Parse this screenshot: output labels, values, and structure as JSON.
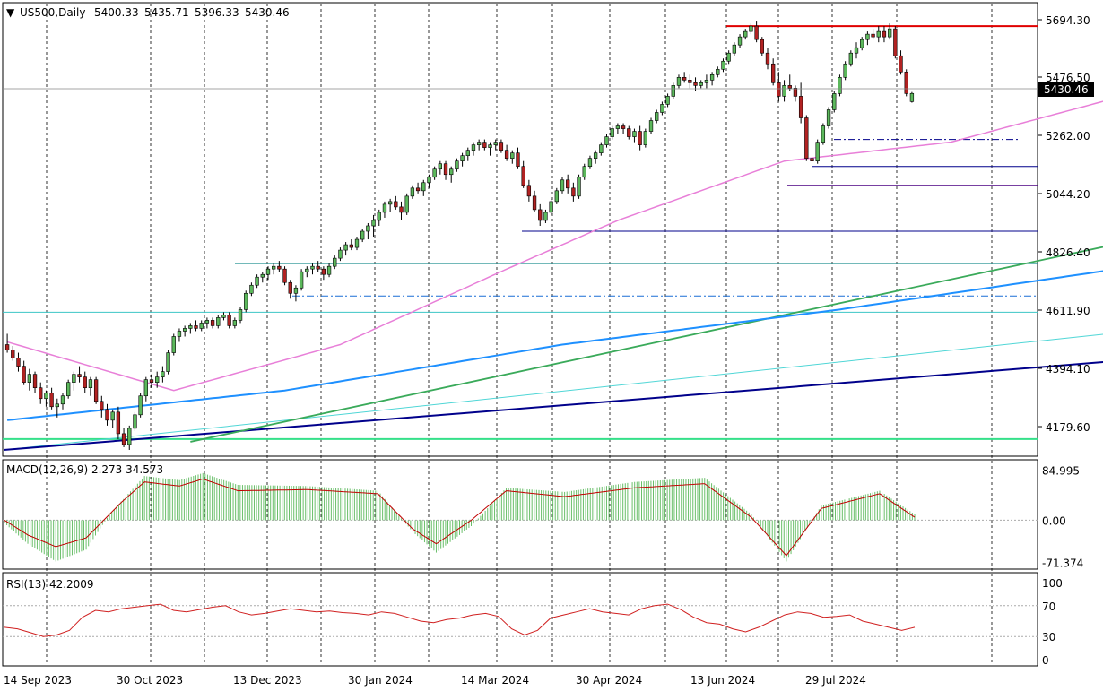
{
  "chart_data": [
    {
      "type": "candlestick",
      "title": "US500,Daily",
      "ohlc_header": {
        "open": "5400.33",
        "high": "5435.71",
        "low": "5396.33",
        "close": "5430.46"
      },
      "last_price_label": "5430.46",
      "ylim": [
        4090,
        5760
      ],
      "y_ticks": [
        "5694.30",
        "5476.50",
        "5262.00",
        "5044.20",
        "4826.40",
        "4611.90",
        "4394.10",
        "4179.60"
      ],
      "x_tick_labels": [
        "14 Sep 2023",
        "30 Oct 2023",
        "13 Dec 2023",
        "30 Jan 2024",
        "14 Mar 2024",
        "30 Apr 2024",
        "13 Jun 2024",
        "29 Jul 2024"
      ],
      "ohlc": [
        [
          4500,
          4540,
          4470,
          4480
        ],
        [
          4480,
          4495,
          4440,
          4450
        ],
        [
          4450,
          4470,
          4400,
          4420
        ],
        [
          4420,
          4440,
          4350,
          4360
        ],
        [
          4360,
          4410,
          4330,
          4390
        ],
        [
          4390,
          4400,
          4320,
          4340
        ],
        [
          4340,
          4360,
          4280,
          4300
        ],
        [
          4300,
          4330,
          4270,
          4320
        ],
        [
          4320,
          4340,
          4260,
          4270
        ],
        [
          4270,
          4300,
          4230,
          4280
        ],
        [
          4280,
          4320,
          4260,
          4310
        ],
        [
          4310,
          4370,
          4300,
          4360
        ],
        [
          4360,
          4400,
          4330,
          4390
        ],
        [
          4390,
          4420,
          4360,
          4380
        ],
        [
          4380,
          4400,
          4320,
          4340
        ],
        [
          4340,
          4380,
          4310,
          4370
        ],
        [
          4370,
          4380,
          4280,
          4290
        ],
        [
          4290,
          4310,
          4230,
          4260
        ],
        [
          4260,
          4280,
          4200,
          4220
        ],
        [
          4220,
          4260,
          4190,
          4250
        ],
        [
          4250,
          4270,
          4150,
          4170
        ],
        [
          4170,
          4190,
          4120,
          4130
        ],
        [
          4130,
          4200,
          4110,
          4190
        ],
        [
          4190,
          4250,
          4180,
          4240
        ],
        [
          4240,
          4320,
          4230,
          4310
        ],
        [
          4310,
          4380,
          4290,
          4370
        ],
        [
          4370,
          4390,
          4340,
          4360
        ],
        [
          4360,
          4400,
          4340,
          4380
        ],
        [
          4380,
          4420,
          4360,
          4400
        ],
        [
          4400,
          4480,
          4390,
          4470
        ],
        [
          4470,
          4540,
          4460,
          4530
        ],
        [
          4530,
          4560,
          4510,
          4550
        ],
        [
          4550,
          4570,
          4530,
          4560
        ],
        [
          4560,
          4580,
          4540,
          4570
        ],
        [
          4570,
          4590,
          4550,
          4560
        ],
        [
          4560,
          4590,
          4550,
          4580
        ],
        [
          4580,
          4600,
          4560,
          4590
        ],
        [
          4590,
          4600,
          4560,
          4570
        ],
        [
          4570,
          4610,
          4560,
          4600
        ],
        [
          4600,
          4620,
          4590,
          4610
        ],
        [
          4610,
          4620,
          4560,
          4570
        ],
        [
          4570,
          4600,
          4560,
          4590
        ],
        [
          4590,
          4640,
          4580,
          4630
        ],
        [
          4630,
          4700,
          4620,
          4690
        ],
        [
          4690,
          4730,
          4680,
          4720
        ],
        [
          4720,
          4760,
          4710,
          4750
        ],
        [
          4750,
          4770,
          4730,
          4760
        ],
        [
          4760,
          4790,
          4740,
          4780
        ],
        [
          4780,
          4800,
          4760,
          4790
        ],
        [
          4790,
          4810,
          4770,
          4780
        ],
        [
          4780,
          4790,
          4720,
          4730
        ],
        [
          4730,
          4740,
          4670,
          4690
        ],
        [
          4690,
          4720,
          4660,
          4710
        ],
        [
          4710,
          4780,
          4700,
          4770
        ],
        [
          4770,
          4790,
          4750,
          4780
        ],
        [
          4780,
          4800,
          4760,
          4790
        ],
        [
          4790,
          4810,
          4770,
          4780
        ],
        [
          4780,
          4790,
          4740,
          4760
        ],
        [
          4760,
          4800,
          4750,
          4790
        ],
        [
          4790,
          4830,
          4780,
          4820
        ],
        [
          4820,
          4860,
          4810,
          4850
        ],
        [
          4850,
          4880,
          4830,
          4870
        ],
        [
          4870,
          4890,
          4850,
          4860
        ],
        [
          4860,
          4900,
          4850,
          4890
        ],
        [
          4890,
          4930,
          4880,
          4920
        ],
        [
          4920,
          4950,
          4890,
          4940
        ],
        [
          4940,
          4980,
          4900,
          4960
        ],
        [
          4960,
          5000,
          4940,
          4990
        ],
        [
          4990,
          5030,
          4970,
          5020
        ],
        [
          5020,
          5040,
          4990,
          5030
        ],
        [
          5030,
          5050,
          5000,
          5010
        ],
        [
          5010,
          5030,
          4960,
          4990
        ],
        [
          4990,
          5060,
          4980,
          5050
        ],
        [
          5050,
          5090,
          5040,
          5080
        ],
        [
          5080,
          5100,
          5060,
          5070
        ],
        [
          5070,
          5110,
          5050,
          5100
        ],
        [
          5100,
          5130,
          5080,
          5120
        ],
        [
          5120,
          5160,
          5110,
          5150
        ],
        [
          5150,
          5180,
          5130,
          5170
        ],
        [
          5170,
          5180,
          5110,
          5130
        ],
        [
          5130,
          5160,
          5100,
          5150
        ],
        [
          5150,
          5190,
          5140,
          5180
        ],
        [
          5180,
          5210,
          5160,
          5200
        ],
        [
          5200,
          5230,
          5180,
          5220
        ],
        [
          5220,
          5250,
          5200,
          5240
        ],
        [
          5240,
          5260,
          5220,
          5250
        ],
        [
          5250,
          5260,
          5220,
          5230
        ],
        [
          5230,
          5250,
          5200,
          5240
        ],
        [
          5240,
          5260,
          5220,
          5250
        ],
        [
          5250,
          5260,
          5210,
          5220
        ],
        [
          5220,
          5240,
          5180,
          5190
        ],
        [
          5190,
          5220,
          5170,
          5210
        ],
        [
          5210,
          5230,
          5150,
          5160
        ],
        [
          5160,
          5180,
          5080,
          5090
        ],
        [
          5090,
          5110,
          5030,
          5050
        ],
        [
          5050,
          5070,
          4990,
          5000
        ],
        [
          5000,
          5020,
          4940,
          4960
        ],
        [
          4960,
          5000,
          4950,
          4990
        ],
        [
          4990,
          5040,
          4980,
          5030
        ],
        [
          5030,
          5080,
          5020,
          5070
        ],
        [
          5070,
          5120,
          5060,
          5110
        ],
        [
          5110,
          5130,
          5060,
          5080
        ],
        [
          5080,
          5100,
          5030,
          5050
        ],
        [
          5050,
          5130,
          5040,
          5120
        ],
        [
          5120,
          5170,
          5110,
          5160
        ],
        [
          5160,
          5200,
          5150,
          5190
        ],
        [
          5190,
          5220,
          5170,
          5210
        ],
        [
          5210,
          5250,
          5200,
          5240
        ],
        [
          5240,
          5280,
          5230,
          5270
        ],
        [
          5270,
          5310,
          5260,
          5300
        ],
        [
          5300,
          5320,
          5280,
          5310
        ],
        [
          5310,
          5320,
          5280,
          5300
        ],
        [
          5300,
          5310,
          5260,
          5270
        ],
        [
          5270,
          5300,
          5250,
          5290
        ],
        [
          5290,
          5310,
          5220,
          5240
        ],
        [
          5240,
          5300,
          5230,
          5290
        ],
        [
          5290,
          5340,
          5280,
          5330
        ],
        [
          5330,
          5370,
          5320,
          5360
        ],
        [
          5360,
          5400,
          5350,
          5390
        ],
        [
          5390,
          5430,
          5380,
          5420
        ],
        [
          5420,
          5470,
          5410,
          5460
        ],
        [
          5460,
          5500,
          5450,
          5490
        ],
        [
          5490,
          5510,
          5470,
          5480
        ],
        [
          5480,
          5500,
          5450,
          5470
        ],
        [
          5470,
          5490,
          5440,
          5460
        ],
        [
          5460,
          5480,
          5450,
          5470
        ],
        [
          5470,
          5500,
          5450,
          5480
        ],
        [
          5480,
          5510,
          5460,
          5500
        ],
        [
          5500,
          5530,
          5490,
          5520
        ],
        [
          5520,
          5560,
          5510,
          5550
        ],
        [
          5550,
          5590,
          5540,
          5580
        ],
        [
          5580,
          5620,
          5570,
          5610
        ],
        [
          5610,
          5650,
          5600,
          5640
        ],
        [
          5640,
          5670,
          5630,
          5660
        ],
        [
          5660,
          5690,
          5650,
          5680
        ],
        [
          5680,
          5700,
          5620,
          5630
        ],
        [
          5630,
          5640,
          5570,
          5580
        ],
        [
          5580,
          5600,
          5520,
          5540
        ],
        [
          5540,
          5560,
          5460,
          5470
        ],
        [
          5470,
          5510,
          5400,
          5420
        ],
        [
          5420,
          5480,
          5400,
          5460
        ],
        [
          5460,
          5500,
          5440,
          5450
        ],
        [
          5450,
          5460,
          5400,
          5420
        ],
        [
          5420,
          5470,
          5320,
          5340
        ],
        [
          5340,
          5350,
          5180,
          5190
        ],
        [
          5190,
          5230,
          5120,
          5180
        ],
        [
          5180,
          5260,
          5170,
          5250
        ],
        [
          5250,
          5320,
          5240,
          5310
        ],
        [
          5310,
          5380,
          5300,
          5370
        ],
        [
          5370,
          5440,
          5360,
          5430
        ],
        [
          5430,
          5500,
          5420,
          5490
        ],
        [
          5490,
          5550,
          5480,
          5540
        ],
        [
          5540,
          5590,
          5530,
          5580
        ],
        [
          5580,
          5620,
          5560,
          5600
        ],
        [
          5600,
          5640,
          5590,
          5630
        ],
        [
          5630,
          5660,
          5610,
          5650
        ],
        [
          5650,
          5670,
          5630,
          5640
        ],
        [
          5640,
          5680,
          5620,
          5660
        ],
        [
          5660,
          5680,
          5620,
          5640
        ],
        [
          5640,
          5690,
          5630,
          5670
        ],
        [
          5670,
          5680,
          5560,
          5570
        ],
        [
          5570,
          5590,
          5500,
          5510
        ],
        [
          5510,
          5520,
          5420,
          5430
        ],
        [
          5400.33,
          5435.71,
          5396.33,
          5430.46
        ]
      ],
      "ma_pink": [
        [
          0,
          4510
        ],
        [
          30,
          4330
        ],
        [
          60,
          4500
        ],
        [
          90,
          4780
        ],
        [
          110,
          4960
        ],
        [
          140,
          5180
        ],
        [
          170,
          5250
        ],
        [
          210,
          5470
        ],
        [
          240,
          5430
        ],
        [
          290,
          5490
        ]
      ],
      "ma_blue": [
        [
          0,
          4220
        ],
        [
          50,
          4330
        ],
        [
          100,
          4500
        ],
        [
          150,
          4630
        ],
        [
          200,
          4780
        ],
        [
          240,
          4980
        ],
        [
          290,
          5170
        ]
      ],
      "trendline_green": [
        [
          33,
          4140
        ],
        [
          295,
          5290
        ]
      ],
      "trendline_navy": [
        [
          0,
          4110
        ],
        [
          310,
          4620
        ]
      ],
      "trendline_cyan": [
        [
          0,
          4110
        ],
        [
          300,
          4760
        ]
      ],
      "h_lines": {
        "red": 5680,
        "green": 4150,
        "teal_1": 4800,
        "teal_2": 4620,
        "navy_1": 4920,
        "navy_2": 5160,
        "navy_3": 5090,
        "dashdot_1": 5260,
        "dashdot_2": 4680
      },
      "volume_note": ""
    },
    {
      "type": "histogram+line",
      "title": "MACD(12,26,9) 2.273 34.573",
      "ylim": [
        -80,
        95
      ],
      "y_ticks": [
        "84.995",
        "0.00",
        "-71.374"
      ],
      "signal_line": [
        [
          0,
          0
        ],
        [
          10,
          -25
        ],
        [
          22,
          -45
        ],
        [
          35,
          -30
        ],
        [
          50,
          30
        ],
        [
          60,
          65
        ],
        [
          75,
          58
        ],
        [
          85,
          70
        ],
        [
          100,
          50
        ],
        [
          130,
          52
        ],
        [
          160,
          45
        ],
        [
          175,
          -15
        ],
        [
          185,
          -40
        ],
        [
          200,
          0
        ],
        [
          215,
          50
        ],
        [
          240,
          40
        ],
        [
          270,
          55
        ],
        [
          300,
          62
        ],
        [
          320,
          5
        ],
        [
          335,
          -60
        ],
        [
          350,
          20
        ],
        [
          375,
          45
        ],
        [
          390,
          5
        ]
      ],
      "histogram": [
        [
          0,
          -5
        ],
        [
          10,
          -40
        ],
        [
          22,
          -70
        ],
        [
          35,
          -50
        ],
        [
          45,
          10
        ],
        [
          60,
          75
        ],
        [
          75,
          68
        ],
        [
          85,
          80
        ],
        [
          100,
          60
        ],
        [
          130,
          58
        ],
        [
          160,
          50
        ],
        [
          175,
          -20
        ],
        [
          185,
          -55
        ],
        [
          200,
          -10
        ],
        [
          215,
          55
        ],
        [
          240,
          48
        ],
        [
          270,
          65
        ],
        [
          300,
          72
        ],
        [
          320,
          10
        ],
        [
          335,
          -70
        ],
        [
          350,
          25
        ],
        [
          375,
          50
        ],
        [
          390,
          10
        ]
      ]
    },
    {
      "type": "line",
      "title": "RSI(13) 42.2009",
      "ylim": [
        0,
        100
      ],
      "y_ticks": [
        "100",
        "70",
        "30",
        "0"
      ],
      "levels": [
        70,
        30
      ],
      "values": [
        42,
        40,
        35,
        30,
        32,
        38,
        55,
        64,
        62,
        66,
        68,
        70,
        72,
        64,
        62,
        65,
        68,
        70,
        62,
        58,
        60,
        63,
        66,
        64,
        62,
        63,
        61,
        60,
        58,
        62,
        60,
        55,
        50,
        48,
        52,
        54,
        58,
        60,
        56,
        40,
        32,
        38,
        54,
        58,
        62,
        66,
        62,
        60,
        58,
        66,
        70,
        72,
        65,
        55,
        48,
        46,
        40,
        36,
        42,
        50,
        58,
        62,
        60,
        55,
        56,
        58,
        50,
        46,
        42,
        38,
        42
      ]
    }
  ]
}
